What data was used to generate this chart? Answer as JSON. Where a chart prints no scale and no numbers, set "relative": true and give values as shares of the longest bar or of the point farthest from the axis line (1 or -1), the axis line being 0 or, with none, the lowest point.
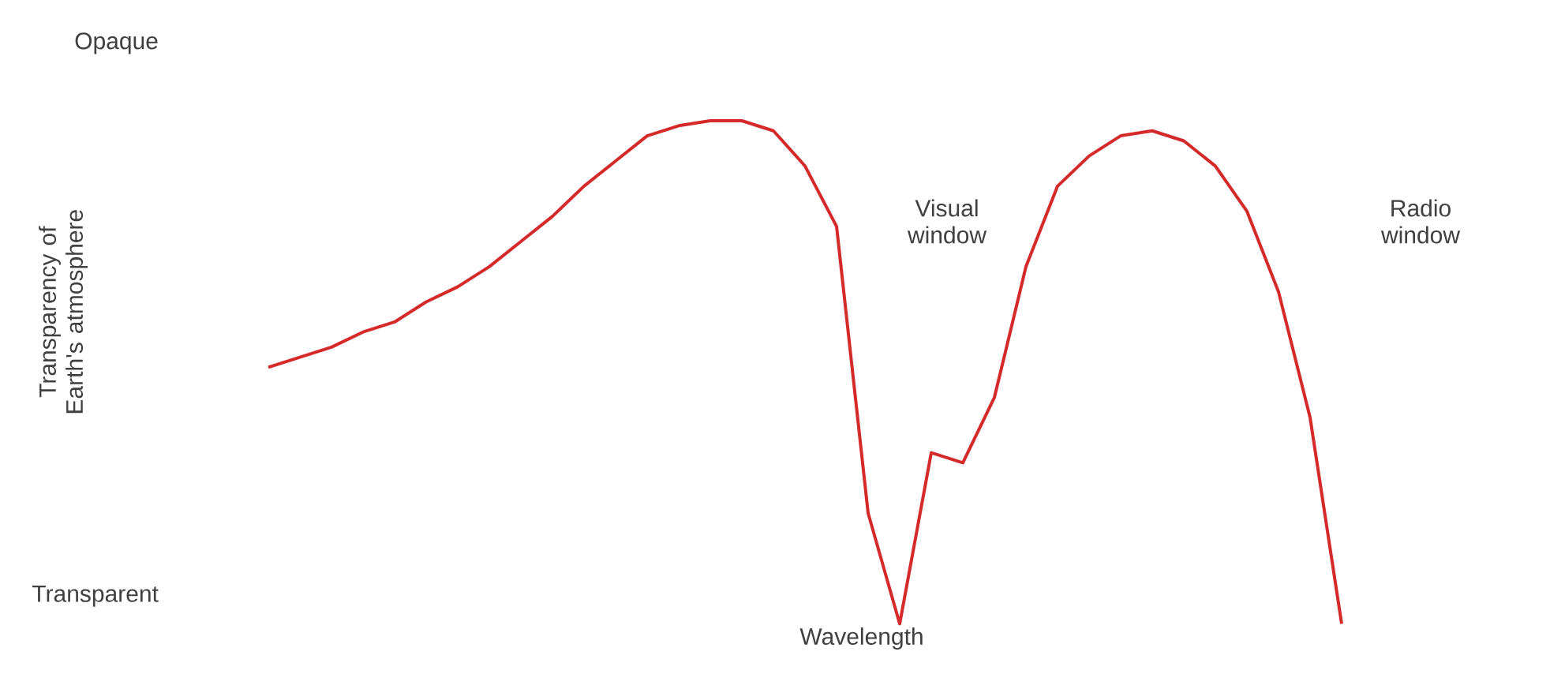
{
  "chart_data": {
    "type": "line",
    "xlabel": "Wavelength",
    "relative": true,
    "categories": [
      null,
      null,
      null,
      null,
      null,
      null,
      null,
      null,
      null,
      null,
      null,
      null,
      null,
      null,
      null,
      null,
      null,
      null,
      null,
      null,
      null,
      null,
      null,
      null,
      null,
      null,
      null,
      null,
      null,
      null,
      null,
      null,
      null,
      null,
      null
    ],
    "series": [
      {
        "color": "#d42a2a",
        "values": [
          0.51,
          0.53,
          0.55,
          0.58,
          0.6,
          0.64,
          0.67,
          0.71,
          0.76,
          0.81,
          0.87,
          0.92,
          0.97,
          0.99,
          1,
          1,
          0.98,
          0.91,
          0.79,
          0.22,
          0,
          0.34,
          0.32,
          0.45,
          0.71,
          0.87,
          0.93,
          0.97,
          0.98,
          0.96,
          0.91,
          0.82,
          0.66,
          0.41,
          0
        ]
      }
    ],
    "annotations": [
      "Opaque",
      "Transparent",
      "Transparency of Earth's atmosphere",
      "Visual window",
      "Radio window"
    ],
    "marker": "none",
    "line_style": "solid"
  }
}
